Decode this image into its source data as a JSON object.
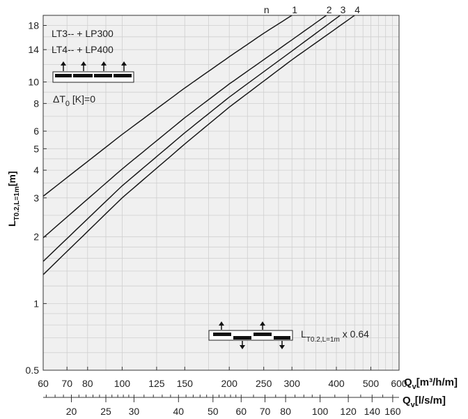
{
  "chart_data": {
    "type": "line",
    "x_scale": "log",
    "y_scale": "log",
    "xlim": [
      60,
      600
    ],
    "ylim": [
      0.5,
      20
    ],
    "grid": true,
    "xlabel": {
      "main": "Q",
      "sub": "v",
      "unit": "[m³/h/m]"
    },
    "x2label": {
      "main": "Q",
      "sub": "v",
      "unit": "[l/s/m]"
    },
    "ylabel": {
      "main": "L",
      "sub": "T0.2,L=1m",
      "unit": "[m]"
    },
    "xticks": [
      60,
      70,
      80,
      100,
      125,
      150,
      200,
      250,
      300,
      400,
      500,
      600
    ],
    "x2ticks": [
      20,
      25,
      30,
      40,
      50,
      60,
      70,
      80,
      100,
      120,
      140,
      160
    ],
    "yticks": [
      0.5,
      1,
      2,
      3,
      4,
      5,
      6,
      8,
      10,
      14,
      18
    ],
    "curve_header": "n",
    "series": [
      {
        "name": "1",
        "x": [
          60,
          100,
          150,
          200,
          250,
          300
        ],
        "y": [
          3.05,
          5.8,
          9.4,
          13.0,
          16.6,
          20.0
        ]
      },
      {
        "name": "2",
        "x": [
          60,
          100,
          150,
          200,
          300,
          375
        ],
        "y": [
          1.98,
          4.05,
          6.9,
          9.8,
          15.5,
          20.0
        ]
      },
      {
        "name": "3",
        "x": [
          60,
          100,
          150,
          200,
          300,
          410
        ],
        "y": [
          1.55,
          3.4,
          5.9,
          8.55,
          13.8,
          20.0
        ]
      },
      {
        "name": "4",
        "x": [
          60,
          100,
          150,
          200,
          300,
          450
        ],
        "y": [
          1.35,
          3.0,
          5.25,
          7.7,
          12.6,
          20.0
        ]
      }
    ],
    "annotations": {
      "line1": "LT3-- + LP300",
      "line2": "LT4-- + LP400",
      "dt_prefix": "ΔT",
      "dt_sub": "0",
      "dt_suffix": " [K]=0",
      "factor_main": "L",
      "factor_sub": "T0.2,L=1m",
      "factor_suffix": " x 0.64"
    }
  }
}
